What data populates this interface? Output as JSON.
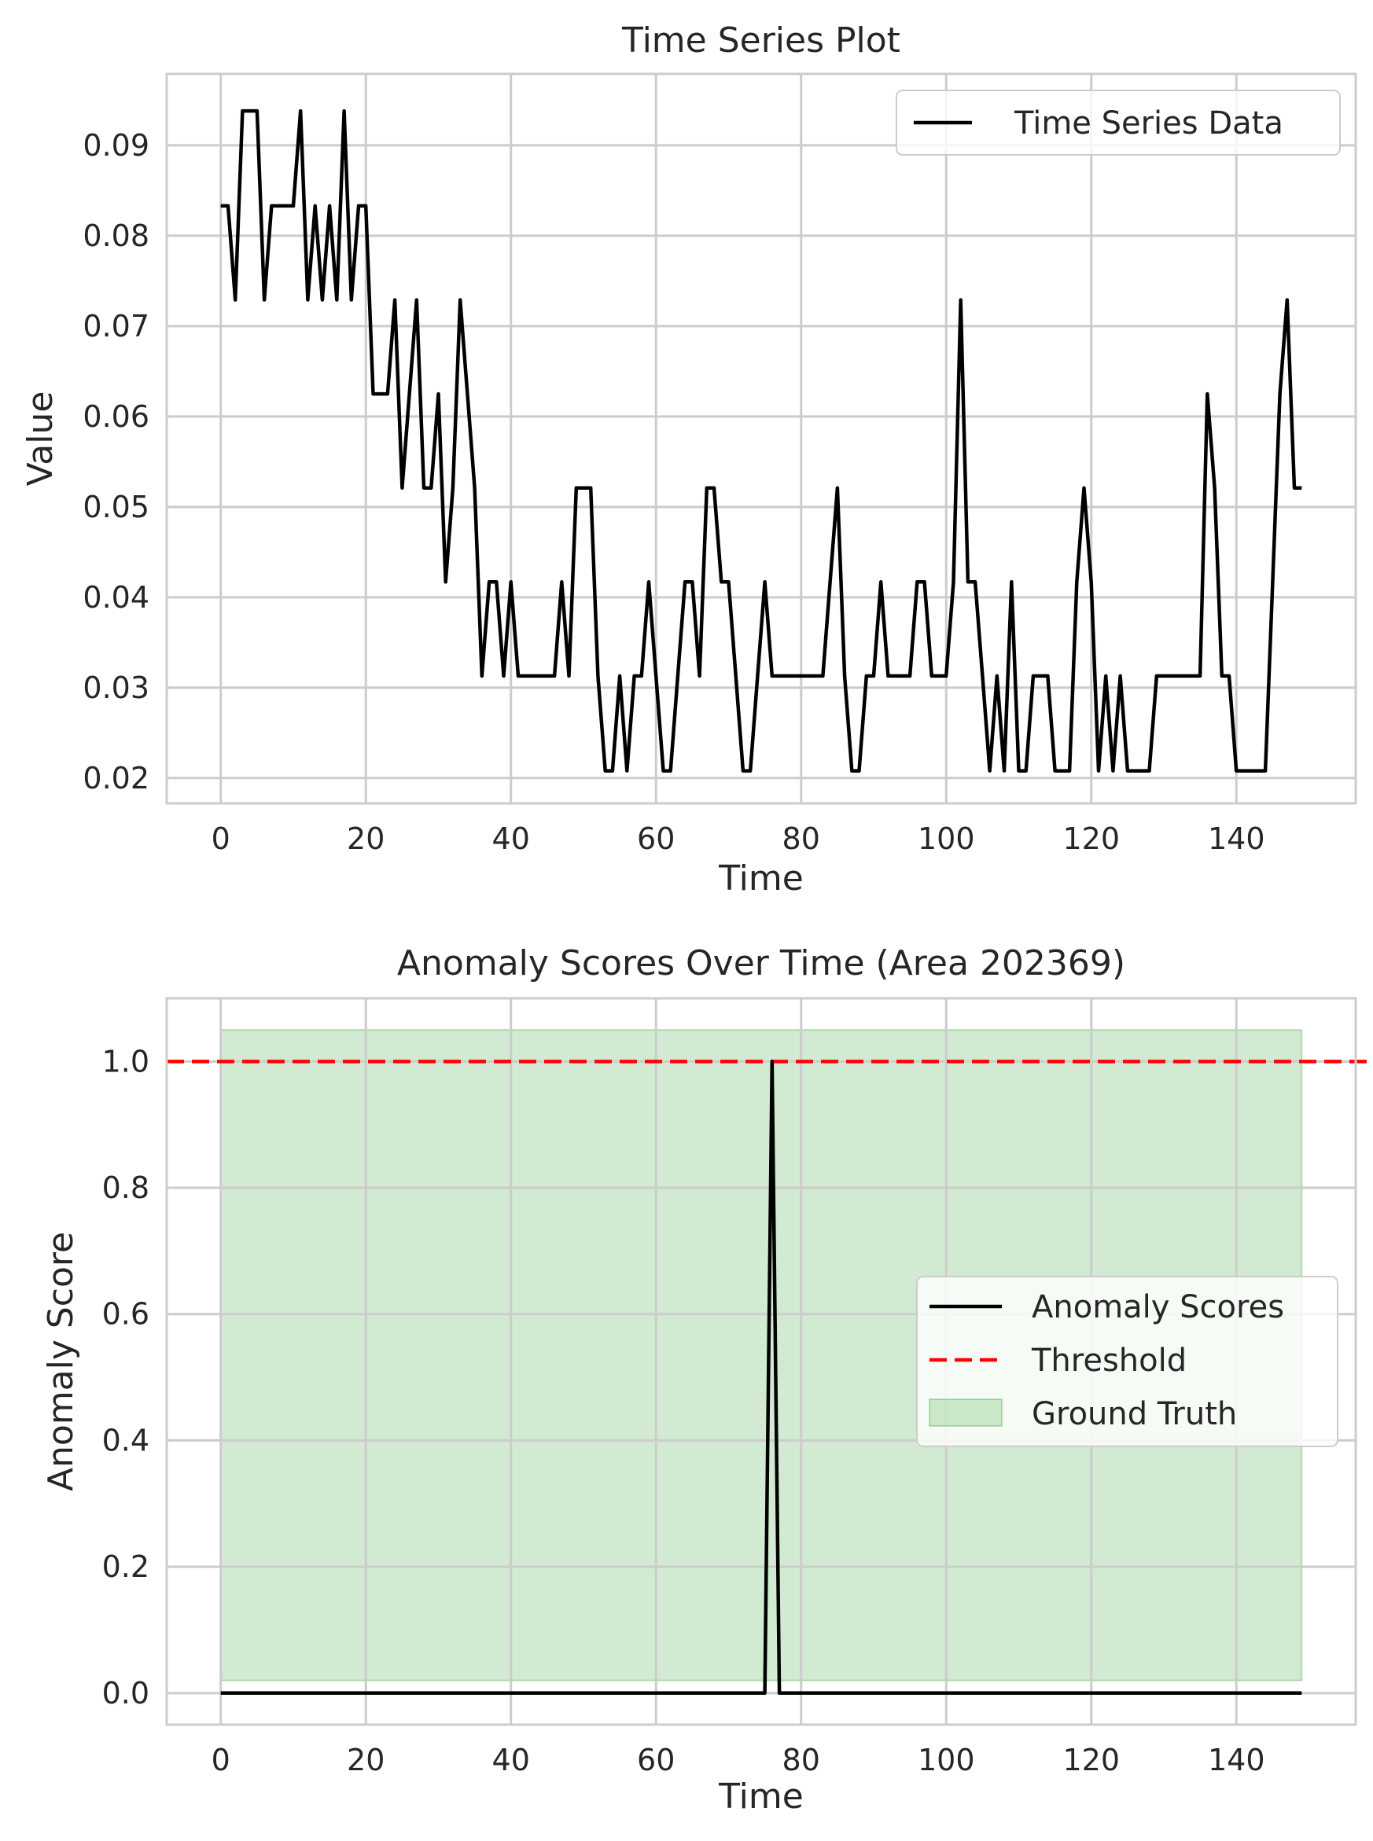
{
  "chart_data": [
    {
      "type": "line",
      "title": "Time Series Plot",
      "xlabel": "Time",
      "ylabel": "Value",
      "xlim": [
        -7.45,
        156.45
      ],
      "ylim": [
        0.0172,
        0.0979
      ],
      "xticks": [
        0,
        20,
        40,
        60,
        80,
        100,
        120,
        140
      ],
      "xtick_labels": [
        "0",
        "20",
        "40",
        "60",
        "80",
        "100",
        "120",
        "140"
      ],
      "yticks": [
        0.02,
        0.03,
        0.04,
        0.05,
        0.06,
        0.07,
        0.08,
        0.09
      ],
      "ytick_labels": [
        "0.02",
        "0.03",
        "0.04",
        "0.05",
        "0.06",
        "0.07",
        "0.08",
        "0.09"
      ],
      "grid": true,
      "legend": "upper right",
      "series": [
        {
          "name": "Time Series Data",
          "color": "#000000",
          "x": [
            0,
            1,
            2,
            3,
            4,
            5,
            6,
            7,
            8,
            9,
            10,
            11,
            12,
            13,
            14,
            15,
            16,
            17,
            18,
            19,
            20,
            21,
            22,
            23,
            24,
            25,
            26,
            27,
            28,
            29,
            30,
            31,
            32,
            33,
            34,
            35,
            36,
            37,
            38,
            39,
            40,
            41,
            42,
            43,
            44,
            45,
            46,
            47,
            48,
            49,
            50,
            51,
            52,
            53,
            54,
            55,
            56,
            57,
            58,
            59,
            60,
            61,
            62,
            63,
            64,
            65,
            66,
            67,
            68,
            69,
            70,
            71,
            72,
            73,
            74,
            75,
            76,
            77,
            78,
            79,
            80,
            81,
            82,
            83,
            84,
            85,
            86,
            87,
            88,
            89,
            90,
            91,
            92,
            93,
            94,
            95,
            96,
            97,
            98,
            99,
            100,
            101,
            102,
            103,
            104,
            105,
            106,
            107,
            108,
            109,
            110,
            111,
            112,
            113,
            114,
            115,
            116,
            117,
            118,
            119,
            120,
            121,
            122,
            123,
            124,
            125,
            126,
            127,
            128,
            129,
            130,
            131,
            132,
            133,
            134,
            135,
            136,
            137,
            138,
            139,
            140,
            141,
            142,
            143,
            144,
            145,
            146,
            147,
            148,
            149
          ],
          "y": [
            0.0833,
            0.0833,
            0.0729,
            0.0938,
            0.0938,
            0.0938,
            0.0729,
            0.0833,
            0.0833,
            0.0833,
            0.0833,
            0.0938,
            0.0729,
            0.0833,
            0.0729,
            0.0833,
            0.0729,
            0.0938,
            0.0729,
            0.0833,
            0.0833,
            0.0625,
            0.0625,
            0.0625,
            0.0729,
            0.0521,
            0.0625,
            0.0729,
            0.0521,
            0.0521,
            0.0625,
            0.0417,
            0.0521,
            0.0729,
            0.0625,
            0.0521,
            0.0313,
            0.0417,
            0.0417,
            0.0313,
            0.0417,
            0.0313,
            0.0313,
            0.0313,
            0.0313,
            0.0313,
            0.0313,
            0.0417,
            0.0313,
            0.0521,
            0.0521,
            0.0521,
            0.0313,
            0.0208,
            0.0208,
            0.0313,
            0.0208,
            0.0313,
            0.0313,
            0.0417,
            0.0313,
            0.0208,
            0.0208,
            0.0313,
            0.0417,
            0.0417,
            0.0313,
            0.0521,
            0.0521,
            0.0417,
            0.0417,
            0.0313,
            0.0208,
            0.0208,
            0.0313,
            0.0417,
            0.0313,
            0.0313,
            0.0313,
            0.0313,
            0.0313,
            0.0313,
            0.0313,
            0.0313,
            0.0417,
            0.0521,
            0.0313,
            0.0208,
            0.0208,
            0.0313,
            0.0313,
            0.0417,
            0.0313,
            0.0313,
            0.0313,
            0.0313,
            0.0417,
            0.0417,
            0.0313,
            0.0313,
            0.0313,
            0.0417,
            0.0729,
            0.0417,
            0.0417,
            0.0313,
            0.0208,
            0.0313,
            0.0208,
            0.0417,
            0.0208,
            0.0208,
            0.0313,
            0.0313,
            0.0313,
            0.0208,
            0.0208,
            0.0208,
            0.0417,
            0.0521,
            0.0417,
            0.0208,
            0.0313,
            0.0208,
            0.0313,
            0.0208,
            0.0208,
            0.0208,
            0.0208,
            0.0313,
            0.0313,
            0.0313,
            0.0313,
            0.0313,
            0.0313,
            0.0313,
            0.0625,
            0.0521,
            0.0313,
            0.0313,
            0.0208,
            0.0208,
            0.0208,
            0.0208,
            0.0208,
            0.0417,
            0.0625,
            0.0729,
            0.0521,
            0.0521
          ]
        }
      ]
    },
    {
      "type": "line",
      "title": "Anomaly Scores Over Time (Area 202369)",
      "xlabel": "Time",
      "ylabel": "Anomaly Score",
      "xlim": [
        -7.45,
        156.45
      ],
      "ylim": [
        -0.05,
        1.1
      ],
      "xticks": [
        0,
        20,
        40,
        60,
        80,
        100,
        120,
        140
      ],
      "xtick_labels": [
        "0",
        "20",
        "40",
        "60",
        "80",
        "100",
        "120",
        "140"
      ],
      "yticks": [
        0.0,
        0.2,
        0.4,
        0.6,
        0.8,
        1.0
      ],
      "ytick_labels": [
        "0.0",
        "0.2",
        "0.4",
        "0.6",
        "0.8",
        "1.0"
      ],
      "grid": true,
      "legend": "center right",
      "series": [
        {
          "name": "Anomaly Scores",
          "color": "#000000",
          "x": [
            0,
            75,
            76,
            77,
            149
          ],
          "y": [
            0,
            0,
            1,
            0,
            0
          ]
        }
      ],
      "threshold": {
        "name": "Threshold",
        "value": 1.0,
        "color": "#ff0000"
      },
      "ground_truth": {
        "name": "Ground Truth",
        "x_range": [
          0,
          149
        ],
        "y_range": [
          0.02,
          1.05
        ],
        "color": "#2ca02c"
      }
    }
  ]
}
